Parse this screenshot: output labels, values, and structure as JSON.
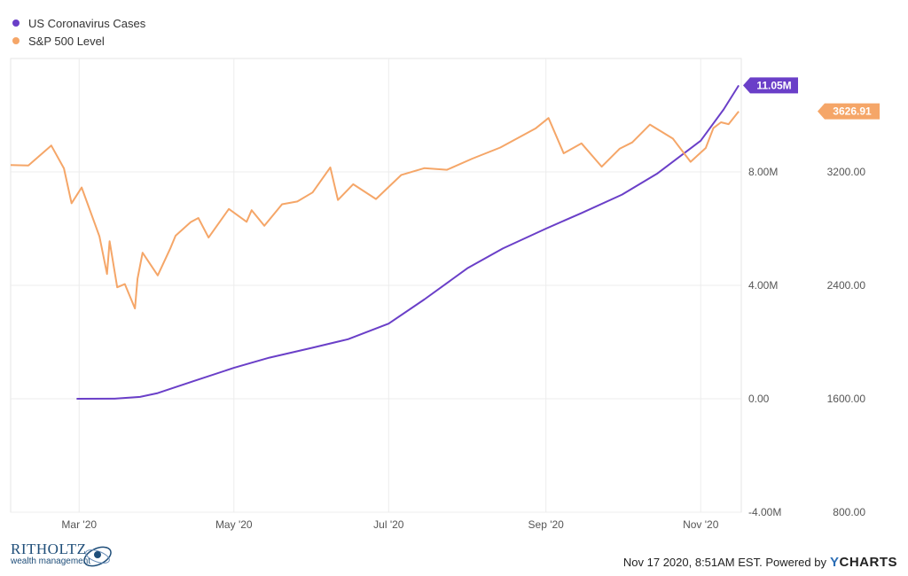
{
  "legend": [
    {
      "label": "US Coronavirus Cases",
      "color": "#6a3fc8"
    },
    {
      "label": "S&P 500 Level",
      "color": "#f5a668"
    }
  ],
  "footer": {
    "logo_name": "RITHOLTZ",
    "logo_sub": "wealth management",
    "timestamp": "Nov 17 2020, 8:51AM EST.",
    "powered_by": "Powered by",
    "brand_y": "Y",
    "brand_rest": "CHARTS"
  },
  "chart_data": {
    "type": "line",
    "x_tick_labels": [
      "Mar '20",
      "May '20",
      "Jul '20",
      "Sep '20",
      "Nov '20"
    ],
    "x_ticks": [
      "2020-03-01",
      "2020-05-01",
      "2020-07-01",
      "2020-09-01",
      "2020-11-01"
    ],
    "x_range": [
      "2020-02-03",
      "2020-11-17"
    ],
    "left_axis": {
      "ticks": [
        -4000000,
        0,
        4000000,
        8000000
      ],
      "tick_labels": [
        "-4.00M",
        "0.00",
        "4.00M",
        "8.00M"
      ],
      "ylim": [
        -4000000,
        12000000
      ]
    },
    "right_axis": {
      "ticks": [
        800,
        1600,
        2400,
        3200
      ],
      "tick_labels": [
        "800.00",
        "1600.00",
        "2400.00",
        "3200.00"
      ],
      "ylim": [
        800,
        4000
      ]
    },
    "grid": true,
    "legend_position": "top-left",
    "series": [
      {
        "name": "US Coronavirus Cases",
        "axis": "left",
        "color": "#6a3fc8",
        "end_label": "11.05M",
        "points": [
          [
            "2020-02-29",
            0
          ],
          [
            "2020-03-15",
            3000
          ],
          [
            "2020-03-25",
            65000
          ],
          [
            "2020-04-01",
            200000
          ],
          [
            "2020-04-15",
            620000
          ],
          [
            "2020-05-01",
            1090000
          ],
          [
            "2020-05-15",
            1450000
          ],
          [
            "2020-06-01",
            1800000
          ],
          [
            "2020-06-15",
            2100000
          ],
          [
            "2020-07-01",
            2650000
          ],
          [
            "2020-07-15",
            3500000
          ],
          [
            "2020-08-01",
            4600000
          ],
          [
            "2020-08-15",
            5300000
          ],
          [
            "2020-09-01",
            6000000
          ],
          [
            "2020-09-15",
            6550000
          ],
          [
            "2020-10-01",
            7200000
          ],
          [
            "2020-10-15",
            7950000
          ],
          [
            "2020-11-01",
            9100000
          ],
          [
            "2020-11-10",
            10200000
          ],
          [
            "2020-11-16",
            11050000
          ]
        ]
      },
      {
        "name": "S&P 500 Level",
        "axis": "right",
        "color": "#f5a668",
        "end_label": "3626.91",
        "points": [
          [
            "2020-02-03",
            3248
          ],
          [
            "2020-02-10",
            3245
          ],
          [
            "2020-02-19",
            3386
          ],
          [
            "2020-02-24",
            3225
          ],
          [
            "2020-02-27",
            2979
          ],
          [
            "2020-03-02",
            3090
          ],
          [
            "2020-03-09",
            2746
          ],
          [
            "2020-03-12",
            2480
          ],
          [
            "2020-03-13",
            2711
          ],
          [
            "2020-03-16",
            2386
          ],
          [
            "2020-03-19",
            2409
          ],
          [
            "2020-03-23",
            2237
          ],
          [
            "2020-03-24",
            2447
          ],
          [
            "2020-03-26",
            2630
          ],
          [
            "2020-04-01",
            2470
          ],
          [
            "2020-04-06",
            2664
          ],
          [
            "2020-04-08",
            2750
          ],
          [
            "2020-04-14",
            2846
          ],
          [
            "2020-04-17",
            2875
          ],
          [
            "2020-04-21",
            2737
          ],
          [
            "2020-04-29",
            2939
          ],
          [
            "2020-05-06",
            2848
          ],
          [
            "2020-05-08",
            2930
          ],
          [
            "2020-05-13",
            2820
          ],
          [
            "2020-05-20",
            2972
          ],
          [
            "2020-05-26",
            2991
          ],
          [
            "2020-06-01",
            3055
          ],
          [
            "2020-06-08",
            3232
          ],
          [
            "2020-06-11",
            3002
          ],
          [
            "2020-06-17",
            3113
          ],
          [
            "2020-06-26",
            3009
          ],
          [
            "2020-07-06",
            3179
          ],
          [
            "2020-07-15",
            3226
          ],
          [
            "2020-07-24",
            3215
          ],
          [
            "2020-08-03",
            3294
          ],
          [
            "2020-08-14",
            3372
          ],
          [
            "2020-08-28",
            3508
          ],
          [
            "2020-09-02",
            3580
          ],
          [
            "2020-09-08",
            3331
          ],
          [
            "2020-09-15",
            3401
          ],
          [
            "2020-09-23",
            3237
          ],
          [
            "2020-09-30",
            3363
          ],
          [
            "2020-10-05",
            3408
          ],
          [
            "2020-10-12",
            3534
          ],
          [
            "2020-10-21",
            3435
          ],
          [
            "2020-10-28",
            3271
          ],
          [
            "2020-11-03",
            3369
          ],
          [
            "2020-11-06",
            3509
          ],
          [
            "2020-11-09",
            3550
          ],
          [
            "2020-11-12",
            3537
          ],
          [
            "2020-11-16",
            3627
          ]
        ]
      }
    ]
  }
}
